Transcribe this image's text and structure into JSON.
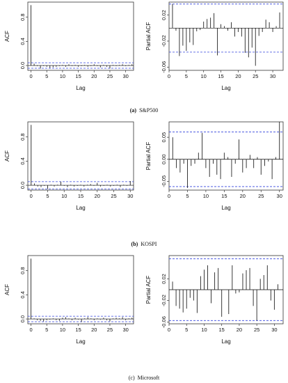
{
  "chart_data": [
    {
      "type": "bar",
      "kind": "acf",
      "panel": "sp500-acf",
      "xlabel": "Lag",
      "ylabel": "ACF",
      "xlim": [
        -1,
        32.5
      ],
      "ylim": [
        -0.08,
        1.05
      ],
      "xticks": [
        0,
        5,
        10,
        15,
        20,
        25,
        30
      ],
      "yticks": [
        {
          "v": 0.0,
          "t": "0.0"
        },
        {
          "v": 0.4,
          "t": "0.4"
        },
        {
          "v": 0.8,
          "t": "0.8"
        }
      ],
      "ci": 0.045,
      "lags": [
        0,
        1,
        2,
        3,
        4,
        5,
        6,
        7,
        8,
        9,
        10,
        11,
        12,
        13,
        14,
        15,
        16,
        17,
        18,
        19,
        20,
        21,
        22,
        23,
        24,
        25,
        26,
        27,
        28,
        29,
        30,
        31,
        32
      ],
      "values": [
        1.0,
        0.03,
        -0.01,
        -0.05,
        -0.01,
        -0.02,
        -0.04,
        -0.03,
        -0.02,
        -0.01,
        0.01,
        -0.02,
        0.02,
        -0.01,
        0.01,
        -0.02,
        -0.01,
        0.01,
        -0.02,
        -0.01,
        0.02,
        -0.01,
        -0.03,
        0.01,
        -0.02,
        -0.05,
        0.01,
        -0.01,
        0.01,
        0.02,
        -0.01,
        0.01,
        0.02
      ],
      "grid": false
    },
    {
      "type": "bar",
      "kind": "pacf",
      "panel": "sp500-pacf",
      "xlabel": "Lag",
      "ylabel": "Partial ACF",
      "xlim": [
        0,
        33
      ],
      "ylim": [
        -0.065,
        0.04
      ],
      "xticks": [
        0,
        5,
        10,
        15,
        20,
        25,
        30
      ],
      "yticks": [
        {
          "v": 0.02,
          "t": "0.02"
        },
        {
          "v": -0.02,
          "t": "-0.02"
        },
        {
          "v": -0.06,
          "t": "-0.06"
        }
      ],
      "ci": 0.037,
      "lags": [
        1,
        2,
        3,
        4,
        5,
        6,
        7,
        8,
        9,
        10,
        11,
        12,
        13,
        14,
        15,
        16,
        17,
        18,
        19,
        20,
        21,
        22,
        23,
        24,
        25,
        26,
        27,
        28,
        29,
        30,
        31,
        32
      ],
      "values": [
        0.037,
        -0.004,
        -0.043,
        -0.027,
        -0.035,
        -0.022,
        -0.026,
        -0.005,
        -0.003,
        0.01,
        0.014,
        0.016,
        0.023,
        -0.042,
        0.006,
        0.003,
        -0.004,
        0.009,
        -0.013,
        -0.006,
        -0.013,
        -0.038,
        -0.045,
        -0.03,
        -0.058,
        -0.012,
        -0.006,
        0.013,
        0.009,
        -0.006,
        0.003,
        0.024
      ],
      "grid": false
    },
    {
      "type": "bar",
      "kind": "acf",
      "panel": "kospi-acf",
      "xlabel": "Lag",
      "ylabel": "ACF",
      "xlim": [
        -1,
        31
      ],
      "ylim": [
        -0.08,
        1.05
      ],
      "xticks": [
        0,
        5,
        10,
        15,
        20,
        25,
        30
      ],
      "yticks": [
        {
          "v": 0.0,
          "t": "0.0"
        },
        {
          "v": 0.4,
          "t": "0.4"
        },
        {
          "v": 0.8,
          "t": "0.8"
        }
      ],
      "ci": 0.06,
      "lags": [
        0,
        1,
        2,
        3,
        4,
        5,
        6,
        7,
        8,
        9,
        10,
        11,
        12,
        13,
        14,
        15,
        16,
        17,
        18,
        19,
        20,
        21,
        22,
        23,
        24,
        25,
        26,
        27,
        28,
        29,
        30
      ],
      "values": [
        1.0,
        0.03,
        -0.02,
        -0.03,
        -0.01,
        -0.06,
        0.01,
        -0.02,
        0.01,
        0.06,
        -0.01,
        -0.03,
        0.01,
        -0.02,
        -0.01,
        0.01,
        -0.02,
        0.01,
        0.02,
        -0.01,
        0.04,
        -0.02,
        -0.01,
        0.01,
        -0.02,
        -0.01,
        0.01,
        -0.03,
        0.01,
        -0.01,
        0.07
      ],
      "grid": false
    },
    {
      "type": "bar",
      "kind": "pacf",
      "panel": "kospi-pacf",
      "xlabel": "Lag",
      "ylabel": "Partial ACF",
      "xlim": [
        0,
        31
      ],
      "ylim": [
        -0.07,
        0.085
      ],
      "xticks": [
        0,
        5,
        10,
        15,
        20,
        25,
        30
      ],
      "yticks": [
        {
          "v": 0.05,
          "t": "0.05"
        },
        {
          "v": 0.0,
          "t": "0.00"
        },
        {
          "v": -0.05,
          "t": "-0.05"
        }
      ],
      "ci": 0.062,
      "lags": [
        1,
        2,
        3,
        4,
        5,
        6,
        7,
        8,
        9,
        10,
        11,
        12,
        13,
        14,
        15,
        16,
        17,
        18,
        19,
        20,
        21,
        22,
        23,
        24,
        25,
        26,
        27,
        28,
        29,
        30
      ],
      "values": [
        0.05,
        -0.02,
        -0.03,
        -0.01,
        -0.065,
        -0.015,
        -0.01,
        0.015,
        0.06,
        -0.02,
        -0.04,
        -0.01,
        -0.035,
        -0.045,
        0.015,
        0.005,
        -0.04,
        -0.01,
        0.045,
        -0.03,
        -0.02,
        0.01,
        -0.02,
        0.005,
        -0.035,
        -0.015,
        -0.005,
        -0.045,
        0.005,
        0.085
      ],
      "grid": false
    },
    {
      "type": "bar",
      "kind": "acf",
      "panel": "msft-acf",
      "xlabel": "Lag",
      "ylabel": "ACF",
      "xlim": [
        -1,
        32.5
      ],
      "ylim": [
        -0.08,
        1.05
      ],
      "xticks": [
        0,
        5,
        10,
        15,
        20,
        25,
        30
      ],
      "yticks": [
        {
          "v": 0.0,
          "t": "0.0"
        },
        {
          "v": 0.4,
          "t": "0.4"
        },
        {
          "v": 0.8,
          "t": "0.8"
        }
      ],
      "ci": 0.045,
      "lags": [
        0,
        1,
        2,
        3,
        4,
        5,
        6,
        7,
        8,
        9,
        10,
        11,
        12,
        13,
        14,
        15,
        16,
        17,
        18,
        19,
        20,
        21,
        22,
        23,
        24,
        25,
        26,
        27,
        28,
        29,
        30,
        31,
        32
      ],
      "values": [
        1.0,
        0.01,
        -0.02,
        -0.03,
        -0.04,
        -0.02,
        -0.01,
        0.01,
        -0.02,
        -0.03,
        0.02,
        0.03,
        0.01,
        -0.02,
        0.02,
        -0.01,
        -0.05,
        0.01,
        0.03,
        0.01,
        -0.02,
        0.01,
        -0.01,
        0.02,
        -0.02,
        -0.04,
        0.01,
        0.02,
        0.01,
        0.03,
        -0.02,
        0.01,
        0.02
      ],
      "grid": false
    },
    {
      "type": "bar",
      "kind": "pacf",
      "panel": "msft-pacf",
      "xlabel": "Lag",
      "ylabel": "Partial ACF",
      "xlim": [
        0,
        32.5
      ],
      "ylim": [
        -0.063,
        0.063
      ],
      "xticks": [
        0,
        5,
        10,
        15,
        20,
        25,
        30
      ],
      "yticks": [
        {
          "v": 0.02,
          "t": "0.02"
        },
        {
          "v": -0.02,
          "t": "-0.02"
        },
        {
          "v": -0.06,
          "t": "-0.06"
        }
      ],
      "ci": 0.057,
      "lags": [
        1,
        2,
        3,
        4,
        5,
        6,
        7,
        8,
        9,
        10,
        11,
        12,
        13,
        14,
        15,
        16,
        17,
        18,
        19,
        20,
        21,
        22,
        23,
        24,
        25,
        26,
        27,
        28,
        29,
        30,
        31,
        32
      ],
      "values": [
        0.015,
        -0.03,
        -0.035,
        -0.042,
        -0.035,
        -0.015,
        -0.02,
        -0.043,
        0.025,
        0.037,
        0.045,
        -0.025,
        0.032,
        0.04,
        -0.05,
        0.0,
        -0.045,
        0.045,
        -0.007,
        -0.005,
        0.03,
        0.036,
        0.04,
        -0.03,
        -0.057,
        0.02,
        0.027,
        0.045,
        -0.02,
        -0.037,
        0.01,
        0.0
      ],
      "grid": false
    }
  ],
  "captions": [
    {
      "label": "(a)",
      "name": "S&P500"
    },
    {
      "label": "(b)",
      "name": "KOSPI"
    },
    {
      "label": "(c)",
      "name": "Microsoft"
    }
  ],
  "colors": {
    "ci_line": "#3344dd",
    "bar": "#222222",
    "axis": "#333333"
  }
}
